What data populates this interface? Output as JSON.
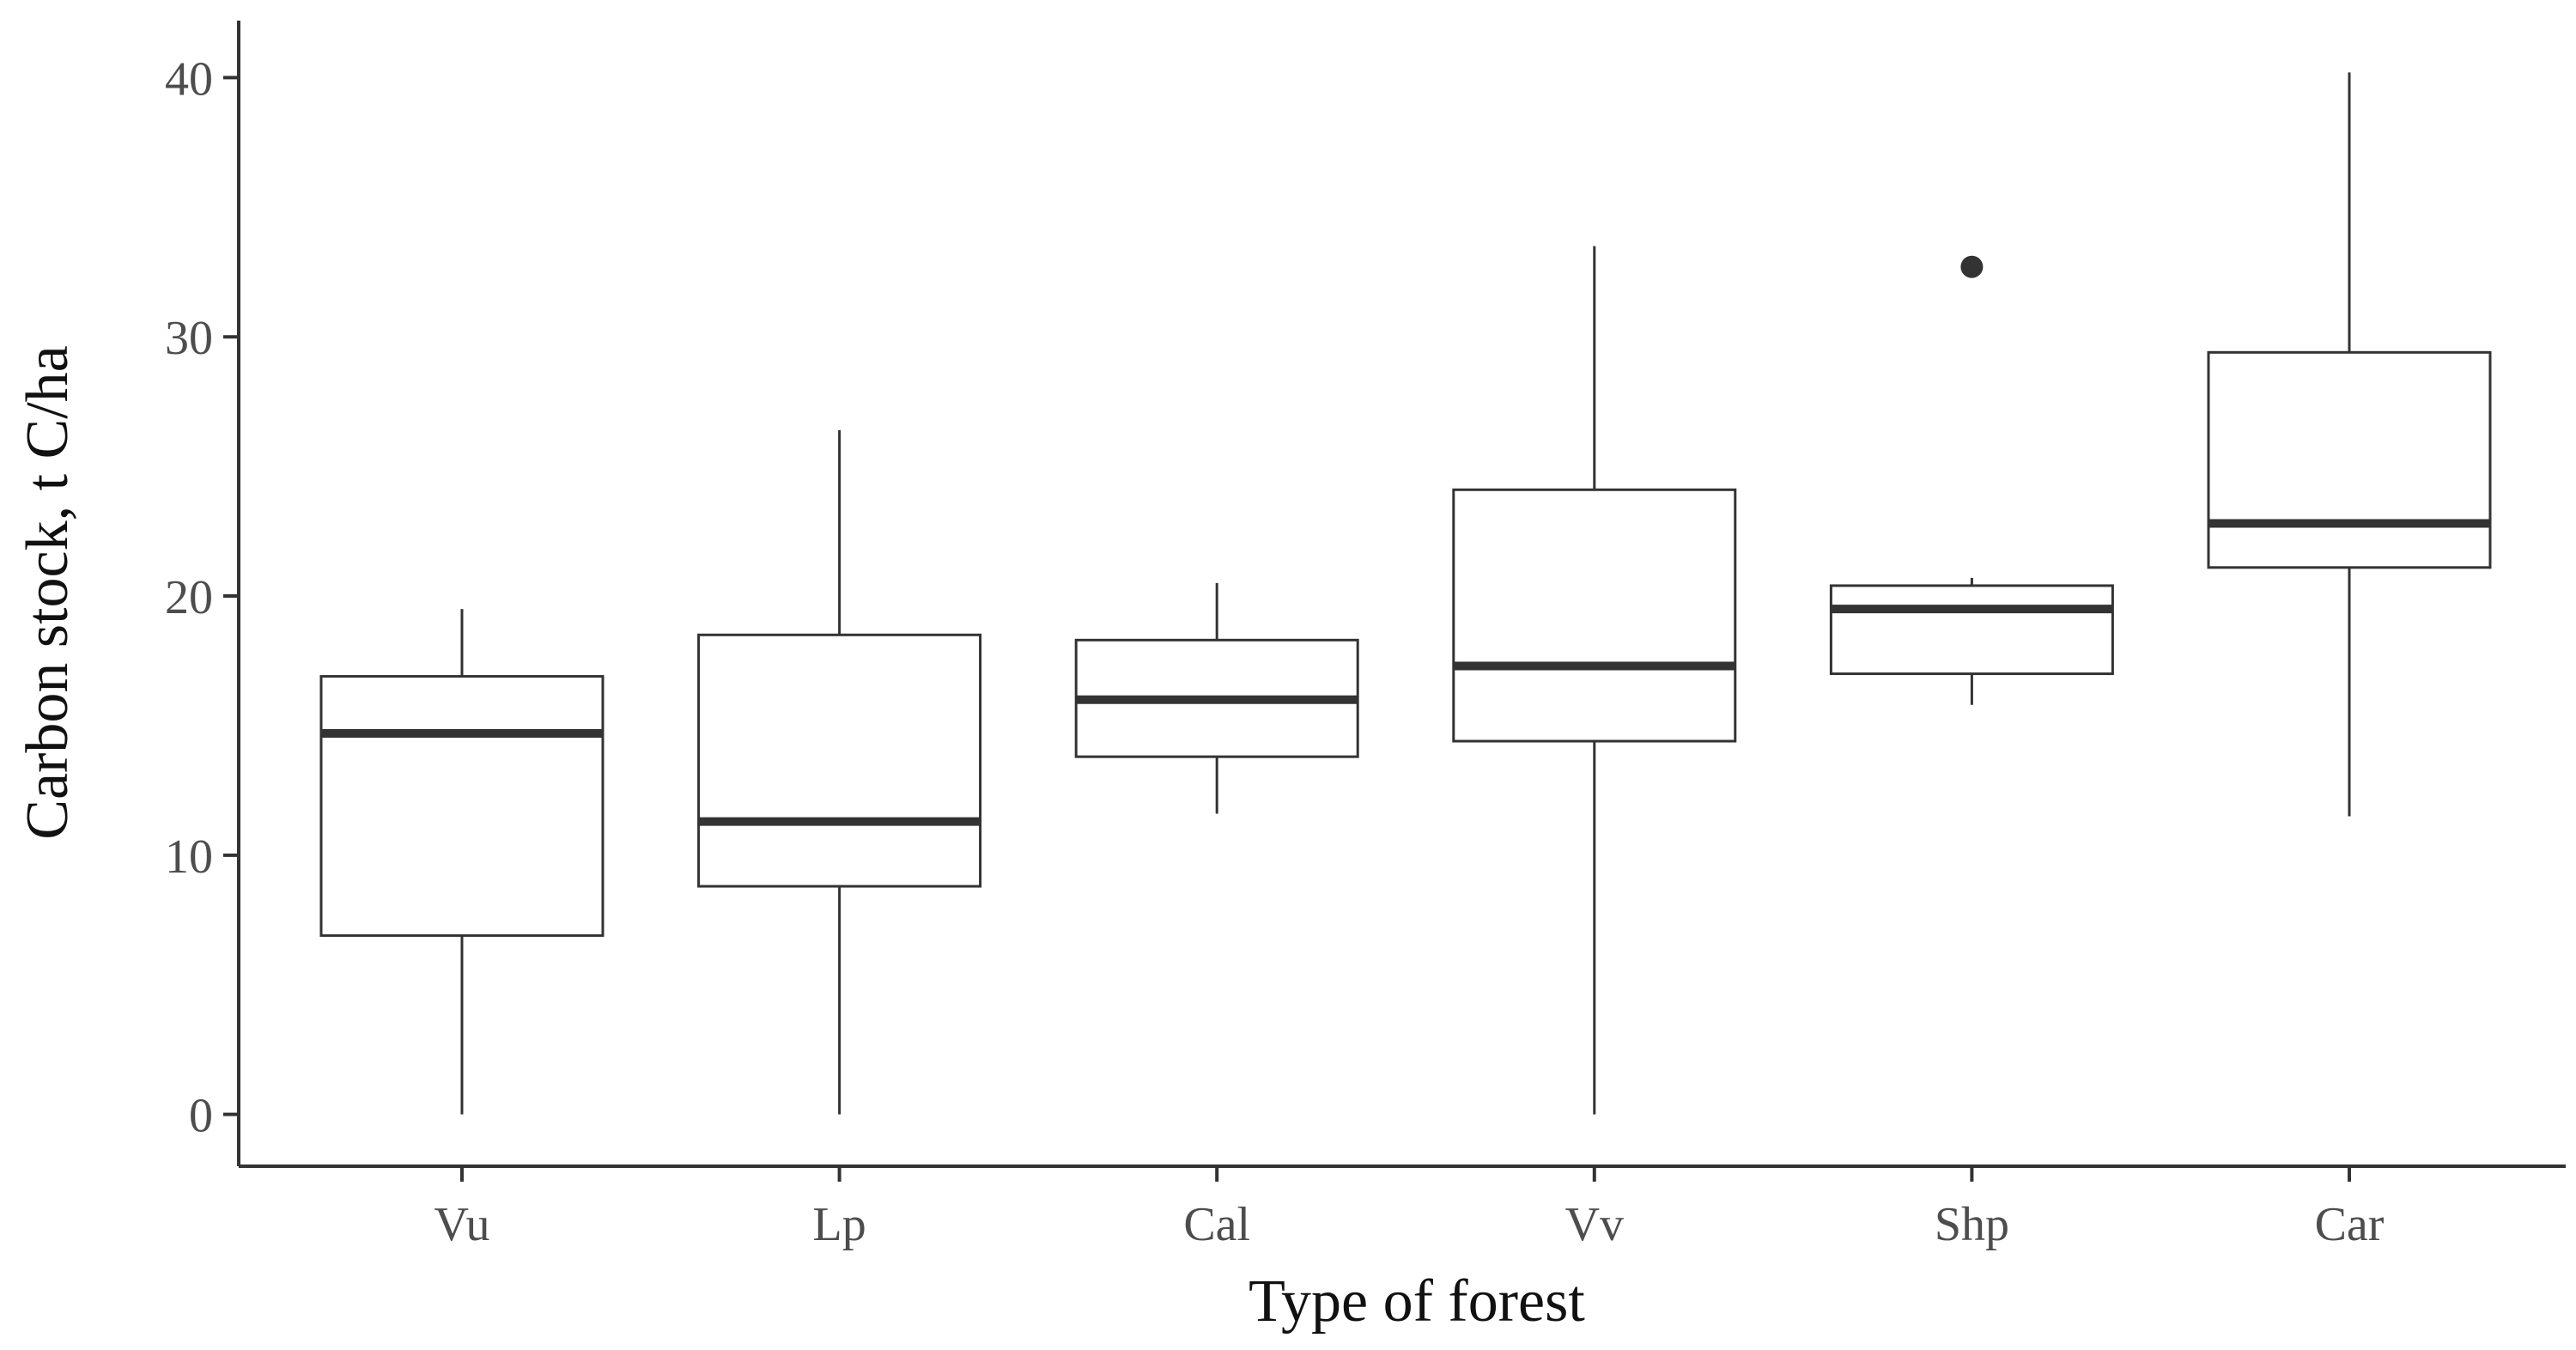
{
  "chart_data": {
    "type": "boxplot",
    "title": "",
    "xlabel": "Type of forest",
    "ylabel": "Carbon stock, t C/ha",
    "ylim": [
      -2,
      42.2
    ],
    "y_ticks": [
      0,
      10,
      20,
      30,
      40
    ],
    "categories": [
      "Vu",
      "Lp",
      "Cal",
      "Vv",
      "Shp",
      "Car"
    ],
    "boxes": [
      {
        "category": "Vu",
        "whisker_low": 0.0,
        "q1": 6.9,
        "median": 14.7,
        "q3": 16.9,
        "whisker_high": 19.5,
        "outliers": []
      },
      {
        "category": "Lp",
        "whisker_low": 0.0,
        "q1": 8.8,
        "median": 11.3,
        "q3": 18.5,
        "whisker_high": 26.4,
        "outliers": []
      },
      {
        "category": "Cal",
        "whisker_low": 11.6,
        "q1": 13.8,
        "median": 16.0,
        "q3": 18.3,
        "whisker_high": 20.5,
        "outliers": []
      },
      {
        "category": "Vv",
        "whisker_low": 0.0,
        "q1": 14.4,
        "median": 17.3,
        "q3": 24.1,
        "whisker_high": 33.5,
        "outliers": []
      },
      {
        "category": "Shp",
        "whisker_low": 15.8,
        "q1": 17.0,
        "median": 19.5,
        "q3": 20.4,
        "whisker_high": 20.7,
        "outliers": [
          32.7
        ]
      },
      {
        "category": "Car",
        "whisker_low": 11.5,
        "q1": 21.1,
        "median": 22.8,
        "q3": 29.4,
        "whisker_high": 40.2,
        "outliers": []
      }
    ],
    "grid": false,
    "legend": "none",
    "colors": {
      "stroke": "#333333",
      "fill": "#ffffff",
      "tick_text": "#4d4d4d",
      "title_text": "#111111"
    }
  }
}
